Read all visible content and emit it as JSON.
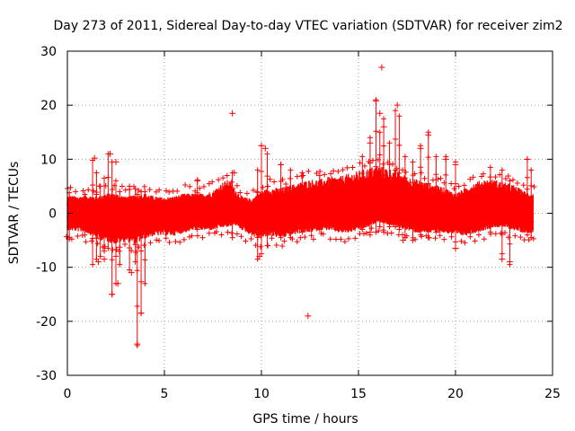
{
  "chart_data": {
    "type": "scatter",
    "title": "Day 273 of 2011, Sidereal Day-to-day VTEC variation (SDTVAR) for receiver zim2",
    "xlabel": "GPS time / hours",
    "ylabel": "SDTVAR / TECUs",
    "xlim": [
      0,
      25
    ],
    "ylim": [
      -30,
      30
    ],
    "xticks": [
      0,
      5,
      10,
      15,
      20,
      25
    ],
    "yticks": [
      -30,
      -20,
      -10,
      0,
      10,
      20,
      30
    ],
    "grid": true,
    "marker": "+",
    "color": "#ff0000",
    "series": [
      {
        "name": "SDTVAR",
        "envelope": {
          "x": [
            0.0,
            0.5,
            1.0,
            1.5,
            2.0,
            2.5,
            3.0,
            3.5,
            4.0,
            4.5,
            5.0,
            5.5,
            6.0,
            6.5,
            7.0,
            7.5,
            8.0,
            8.3,
            8.6,
            9.0,
            9.5,
            9.8,
            10.0,
            10.5,
            11.0,
            11.5,
            12.0,
            12.5,
            13.0,
            13.5,
            14.0,
            14.5,
            15.0,
            15.5,
            16.0,
            16.5,
            17.0,
            17.5,
            18.0,
            18.5,
            19.0,
            19.5,
            20.0,
            20.5,
            21.0,
            21.5,
            22.0,
            22.5,
            23.0,
            23.5,
            24.0
          ],
          "upper": [
            3.2,
            3.0,
            3.2,
            3.0,
            3.5,
            3.5,
            3.0,
            3.2,
            3.5,
            3.0,
            2.8,
            3.0,
            3.5,
            3.5,
            3.5,
            4.0,
            5.5,
            6.0,
            4.5,
            3.0,
            2.5,
            3.5,
            4.0,
            4.5,
            4.5,
            5.0,
            5.5,
            6.0,
            6.0,
            6.5,
            6.5,
            7.0,
            7.5,
            8.0,
            8.5,
            8.0,
            7.5,
            6.5,
            6.0,
            5.5,
            5.0,
            4.5,
            3.5,
            4.5,
            5.5,
            6.0,
            6.0,
            5.5,
            5.0,
            4.0,
            3.5
          ],
          "lower": [
            -3.0,
            -3.2,
            -3.5,
            -4.5,
            -5.0,
            -5.5,
            -5.0,
            -5.5,
            -4.5,
            -4.0,
            -4.0,
            -4.0,
            -3.5,
            -3.0,
            -3.0,
            -3.0,
            -2.5,
            -2.5,
            -2.0,
            -3.0,
            -4.0,
            -4.5,
            -4.5,
            -4.0,
            -4.5,
            -4.0,
            -3.5,
            -3.5,
            -3.0,
            -3.0,
            -3.5,
            -3.5,
            -3.0,
            -2.5,
            -1.5,
            -2.0,
            -2.5,
            -3.0,
            -3.5,
            -3.5,
            -3.5,
            -3.5,
            -4.0,
            -4.0,
            -3.5,
            -3.0,
            -2.5,
            -2.5,
            -3.0,
            -3.5,
            -3.5
          ]
        },
        "spikes": [
          [
            0.1,
            3.8,
            -4.8
          ],
          [
            0.9,
            3.5,
            -4.0
          ],
          [
            1.3,
            9.8,
            -9.5
          ],
          [
            1.5,
            7.5,
            -8.5
          ],
          [
            1.7,
            5.0,
            -8.0
          ],
          [
            1.9,
            6.5,
            -7.0
          ],
          [
            2.1,
            11.0,
            -6.5
          ],
          [
            2.3,
            9.5,
            -15.0
          ],
          [
            2.5,
            6.0,
            -13.0
          ],
          [
            2.7,
            4.0,
            -9.5
          ],
          [
            3.2,
            5.0,
            -10.5
          ],
          [
            3.5,
            4.5,
            -9.0
          ],
          [
            3.6,
            3.5,
            -24.5
          ],
          [
            3.8,
            4.0,
            -18.5
          ],
          [
            4.0,
            4.0,
            -13.0
          ],
          [
            6.7,
            6.2,
            -3.0
          ],
          [
            8.5,
            7.5,
            -4.5
          ],
          [
            9.8,
            8.0,
            -8.5
          ],
          [
            10.0,
            12.5,
            -7.5
          ],
          [
            10.3,
            11.0,
            -6.0
          ],
          [
            11.0,
            9.0,
            -4.5
          ],
          [
            11.5,
            8.0,
            -4.5
          ],
          [
            12.1,
            7.5,
            -3.5
          ],
          [
            13.0,
            7.0,
            -3.0
          ],
          [
            15.2,
            10.5,
            -3.0
          ],
          [
            15.6,
            14.0,
            -4.0
          ],
          [
            15.9,
            21.0,
            -3.5
          ],
          [
            16.1,
            15.0,
            -2.5
          ],
          [
            16.3,
            17.5,
            -3.5
          ],
          [
            16.6,
            13.0,
            -2.5
          ],
          [
            16.9,
            19.0,
            -2.5
          ],
          [
            17.1,
            18.0,
            -3.0
          ],
          [
            17.4,
            10.5,
            -4.5
          ],
          [
            17.8,
            9.5,
            -5.0
          ],
          [
            18.2,
            12.5,
            -4.0
          ],
          [
            18.6,
            15.0,
            -4.5
          ],
          [
            19.0,
            10.5,
            -3.5
          ],
          [
            19.5,
            10.5,
            -3.0
          ],
          [
            20.0,
            9.5,
            -6.5
          ],
          [
            21.8,
            8.5,
            -3.5
          ],
          [
            22.4,
            8.0,
            -7.5
          ],
          [
            22.8,
            6.0,
            -9.5
          ],
          [
            23.7,
            10.0,
            -4.0
          ],
          [
            23.9,
            8.0,
            -4.5
          ]
        ],
        "outliers": [
          [
            16.2,
            27.0
          ],
          [
            8.5,
            18.5
          ],
          [
            12.4,
            -19.0
          ],
          [
            3.6,
            -24.2
          ],
          [
            3.8,
            -18.5
          ],
          [
            2.3,
            -15.0
          ],
          [
            2.6,
            -13.0
          ],
          [
            10.0,
            12.5
          ],
          [
            10.2,
            12.0
          ],
          [
            2.2,
            11.0
          ],
          [
            1.4,
            10.2
          ],
          [
            2.5,
            9.5
          ],
          [
            11.0,
            9.0
          ],
          [
            17.0,
            20.0
          ],
          [
            15.9,
            20.8
          ],
          [
            16.1,
            18.5
          ],
          [
            16.3,
            16.0
          ],
          [
            18.6,
            14.5
          ],
          [
            18.2,
            12.0
          ],
          [
            15.6,
            13.0
          ],
          [
            20.0,
            9.0
          ],
          [
            23.7,
            10.0
          ],
          [
            6.7,
            6.0
          ],
          [
            8.6,
            7.5
          ],
          [
            19.5,
            10.0
          ],
          [
            1.6,
            -9.0
          ],
          [
            1.9,
            -8.5
          ],
          [
            3.3,
            -11.0
          ],
          [
            9.9,
            -8.0
          ],
          [
            22.4,
            -8.5
          ],
          [
            22.8,
            -9.0
          ],
          [
            20.0,
            -6.5
          ],
          [
            15.6,
            -3.5
          ],
          [
            17.3,
            -5.0
          ],
          [
            0.1,
            -4.5
          ]
        ]
      }
    ]
  }
}
